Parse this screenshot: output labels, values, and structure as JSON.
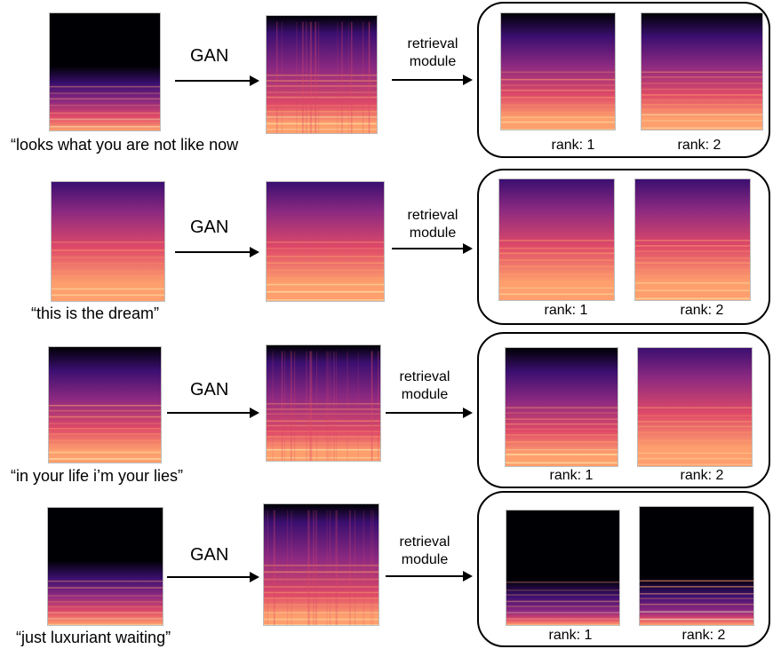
{
  "gan_label": "GAN",
  "retrieval_line1": "retrieval",
  "retrieval_line2": "module",
  "rank1": "rank: 1",
  "rank2": "rank: 2",
  "colormap": [
    "#000004",
    "#3b0f70",
    "#8c2981",
    "#de4968",
    "#fe9f6d",
    "#fcfdbf"
  ],
  "rows": [
    {
      "caption": "“looks what you are not like now"
    },
    {
      "caption": "“this is the dream”"
    },
    {
      "caption": "“in your life i’m your lies”"
    },
    {
      "caption": "“just luxuriant waiting”"
    }
  ]
}
